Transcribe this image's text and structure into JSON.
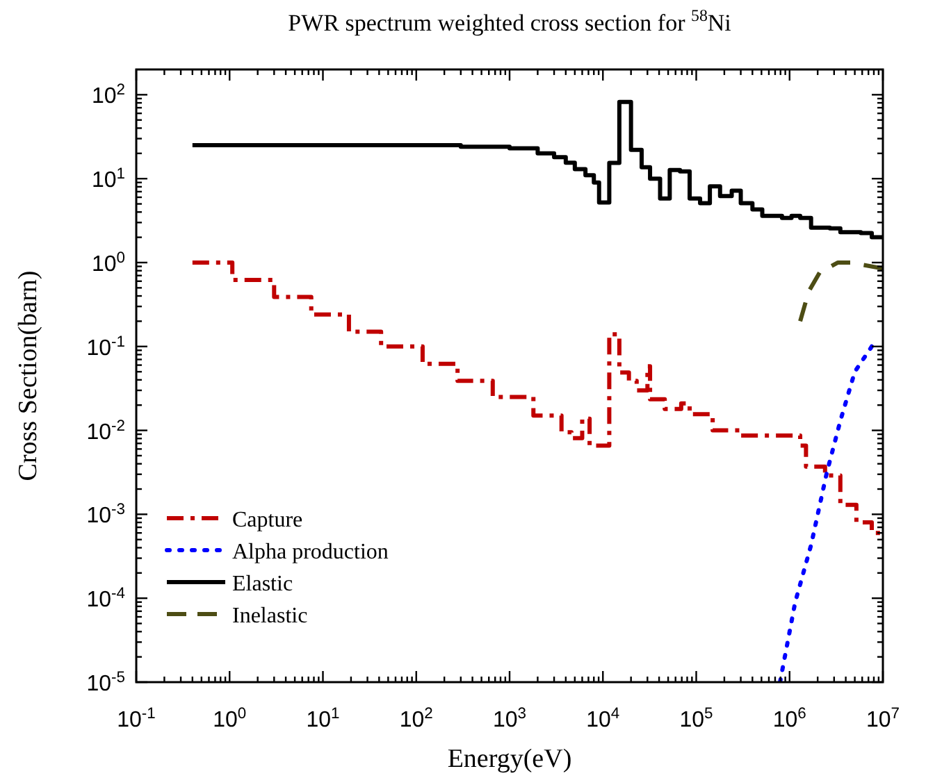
{
  "chart_data": {
    "type": "step",
    "title": "PWR spectrum weighted cross section for $^{58}$Ni",
    "xlabel": "Energy(eV)",
    "ylabel": "Cross Section(barn)",
    "log": "xy",
    "legend": "bottom left",
    "grid": false,
    "xlim": [
      0.1,
      10000000
    ],
    "ylim": [
      1e-05,
      200
    ],
    "xticks": [
      {
        "value": 0.1,
        "label": "10$^{-1}$"
      },
      {
        "value": 1,
        "label": "10$^{0}$"
      },
      {
        "value": 10,
        "label": "10$^{1}$"
      },
      {
        "value": 100,
        "label": "10$^{2}$"
      },
      {
        "value": 1000,
        "label": "10$^{3}$"
      },
      {
        "value": 10000,
        "label": "10$^{4}$"
      },
      {
        "value": 100000,
        "label": "10$^{5}$"
      },
      {
        "value": 1000000,
        "label": "10$^{6}$"
      },
      {
        "value": 10000000,
        "label": "10$^{7}$"
      }
    ],
    "yticks": [
      {
        "value": 1e-05,
        "label": "10$^{-5}$"
      },
      {
        "value": 0.0001,
        "label": "10$^{-4}$"
      },
      {
        "value": 0.001,
        "label": "10$^{-3}$"
      },
      {
        "value": 0.01,
        "label": "10$^{-2}$"
      },
      {
        "value": 0.1,
        "label": "10$^{-1}$"
      },
      {
        "value": 1,
        "label": "10$^{0}$"
      },
      {
        "value": 10,
        "label": "10$^{1}$"
      },
      {
        "value": 100,
        "label": "10$^{2}$"
      }
    ],
    "series": [
      {
        "name": "Capture",
        "color": "#c00000",
        "line_style": "dashdot",
        "x": [
          0.4,
          1.07,
          3,
          7.5,
          19,
          42,
          117,
          277,
          660,
          1800,
          3600,
          4600,
          6000,
          7200,
          11700,
          15000,
          19000,
          23000,
          30000,
          32000,
          46000,
          69000,
          85000,
          150000,
          290000,
          1300000,
          1500000,
          2400000,
          3500000,
          5200000,
          7600000,
          10000000
        ],
        "values": [
          1.0,
          0.62,
          0.39,
          0.24,
          0.15,
          0.1,
          0.062,
          0.039,
          0.025,
          0.015,
          0.0095,
          0.0081,
          0.0138,
          0.0066,
          0.14,
          0.049,
          0.039,
          0.03,
          0.058,
          0.0235,
          0.018,
          0.021,
          0.0156,
          0.01,
          0.0087,
          0.0066,
          0.0037,
          0.0029,
          0.0013,
          0.0008,
          0.0006,
          0.0006
        ]
      },
      {
        "name": "Alpha production",
        "type": "line",
        "color": "#0000ff",
        "line_style": "dotted",
        "x": [
          790000,
          1150000,
          1700000,
          2500000,
          3500000,
          5000000,
          7600000
        ],
        "values": [
          1e-05,
          9e-05,
          0.00043,
          0.0031,
          0.013,
          0.05,
          0.1
        ]
      },
      {
        "name": "Elastic",
        "color": "#000000",
        "line_style": "solid",
        "x": [
          0.4,
          100,
          300,
          1000,
          2000,
          3000,
          4000,
          5000,
          6500,
          8000,
          9100,
          11700,
          15000,
          20000,
          26000,
          32000,
          41000,
          52000,
          67000,
          85000,
          110000,
          140000,
          180000,
          240000,
          300000,
          400000,
          510000,
          830000,
          1050000,
          1300000,
          1700000,
          2700000,
          3500000,
          5800000,
          7600000,
          10000000
        ],
        "values": [
          25,
          25,
          24,
          23,
          20,
          18,
          15.5,
          13,
          11,
          9,
          5.2,
          15.4,
          82,
          22,
          13.7,
          10,
          5.8,
          12.7,
          12.2,
          5.8,
          5.1,
          8.1,
          6.2,
          7.2,
          5.1,
          4.3,
          3.6,
          3.4,
          3.6,
          3.4,
          2.6,
          2.55,
          2.3,
          2.25,
          2.0,
          2.0
        ]
      },
      {
        "name": "Inelastic",
        "type": "line",
        "color": "#4d4d14",
        "line_style": "dashed",
        "x": [
          1300000,
          1600000,
          2100000,
          3300000,
          4500000,
          5800000,
          10000000
        ],
        "values": [
          0.2,
          0.45,
          0.76,
          1.0,
          1.0,
          0.95,
          0.85
        ]
      }
    ]
  }
}
